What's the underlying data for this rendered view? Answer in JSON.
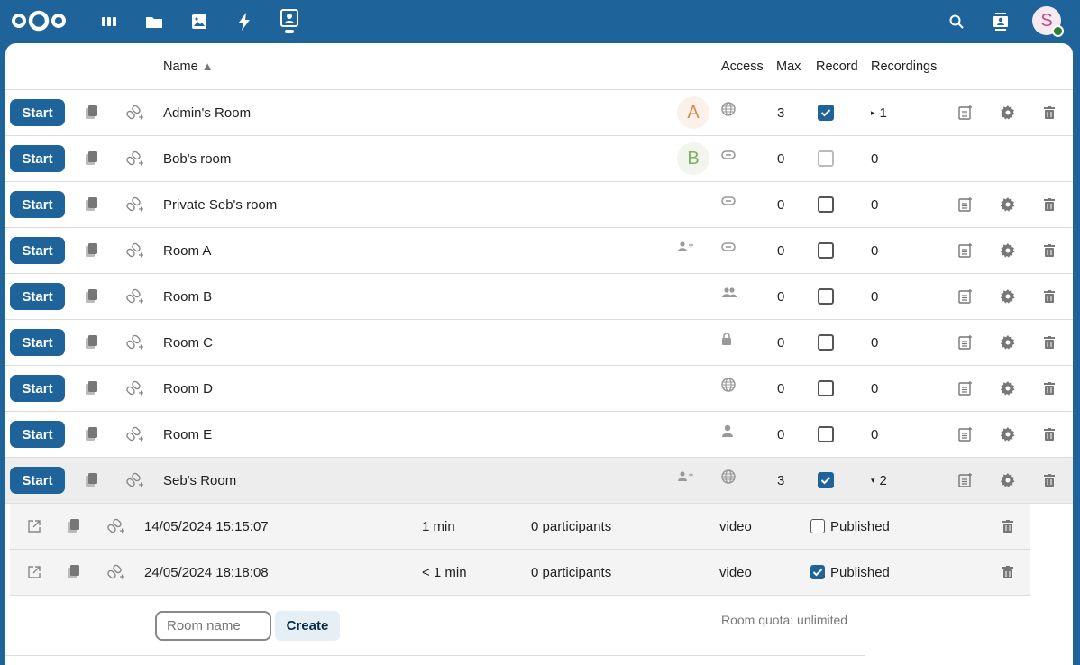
{
  "nav": {
    "icons": [
      "dashboard-icon",
      "files-icon",
      "photos-icon",
      "activity-icon",
      "bbb-icon"
    ],
    "right": [
      "search-icon",
      "contacts-icon"
    ],
    "avatar_letter": "S",
    "avatar_status": "#2e7d32"
  },
  "colors": {
    "brand": "#1e6399"
  },
  "table": {
    "headers": {
      "name": "Name",
      "sort_indicator": "▲",
      "access": "Access",
      "max": "Max",
      "record": "Record",
      "recordings": "Recordings"
    },
    "start_label": "Start",
    "rooms": [
      {
        "name": "Admin's Room",
        "owner": "A",
        "owner_color": "#d8894a",
        "owner_bg": "#faf1eb",
        "access": "globe",
        "max": "3",
        "record": true,
        "record_disabled": false,
        "recordings": "1",
        "toggle": "▸",
        "actions": true
      },
      {
        "name": "Bob's room",
        "owner": "B",
        "owner_color": "#7fae64",
        "owner_bg": "#f0f5ee",
        "access": "link",
        "max": "0",
        "record": false,
        "record_disabled": true,
        "recordings": "0",
        "toggle": "",
        "actions": false
      },
      {
        "name": "Private Seb's room",
        "owner": "",
        "access": "link",
        "max": "0",
        "record": false,
        "record_disabled": false,
        "recordings": "0",
        "toggle": "",
        "actions": true
      },
      {
        "name": "Room A",
        "owner": "",
        "shared": true,
        "access": "link",
        "max": "0",
        "record": false,
        "record_disabled": false,
        "recordings": "0",
        "toggle": "",
        "actions": true
      },
      {
        "name": "Room B",
        "owner": "",
        "access": "group",
        "max": "0",
        "record": false,
        "record_disabled": false,
        "recordings": "0",
        "toggle": "",
        "actions": true
      },
      {
        "name": "Room C",
        "owner": "",
        "access": "lock",
        "max": "0",
        "record": false,
        "record_disabled": false,
        "recordings": "0",
        "toggle": "",
        "actions": true
      },
      {
        "name": "Room D",
        "owner": "",
        "access": "globe",
        "max": "0",
        "record": false,
        "record_disabled": false,
        "recordings": "0",
        "toggle": "",
        "actions": true
      },
      {
        "name": "Room E",
        "owner": "",
        "access": "user",
        "max": "0",
        "record": false,
        "record_disabled": false,
        "recordings": "0",
        "toggle": "",
        "actions": true
      },
      {
        "name": "Seb's Room",
        "owner": "",
        "shared": true,
        "access": "globe",
        "max": "3",
        "record": true,
        "record_disabled": false,
        "recordings": "2",
        "toggle": "▾",
        "actions": true,
        "selected": true
      }
    ],
    "recordings": [
      {
        "date": "14/05/2024 15:15:07",
        "duration": "1 min",
        "participants": "0 participants",
        "type": "video",
        "published": false,
        "published_label": "Published"
      },
      {
        "date": "24/05/2024 18:18:08",
        "duration": "< 1 min",
        "participants": "0 participants",
        "type": "video",
        "published": true,
        "published_label": "Published"
      }
    ]
  },
  "footer": {
    "placeholder": "Room name",
    "create": "Create",
    "quota": "Room quota: unlimited"
  }
}
